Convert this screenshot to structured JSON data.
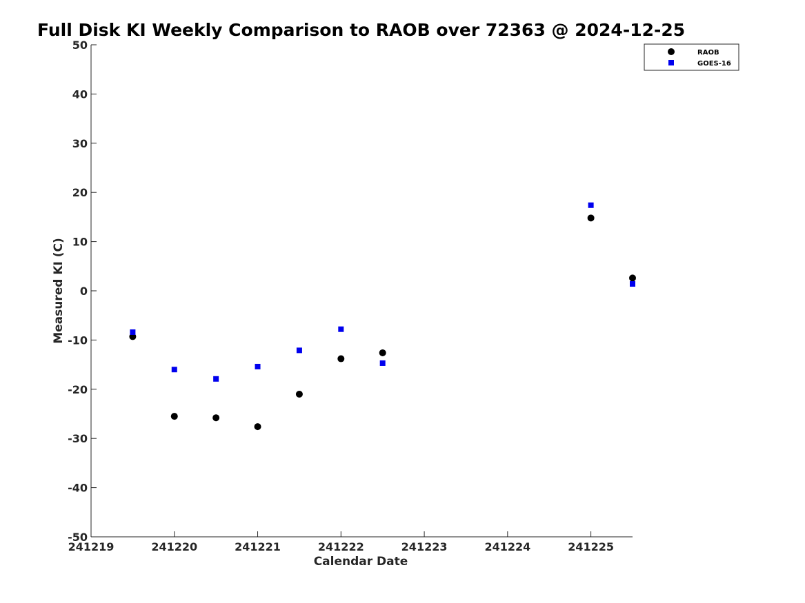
{
  "chart_data": {
    "type": "scatter",
    "title": "Full Disk KI Weekly Comparison to RAOB over 72363 @ 2024-12-25",
    "xlabel": "Calendar Date",
    "ylabel": "Measured KI (C)",
    "xlim": [
      0,
      6.5
    ],
    "ylim": [
      -50,
      50
    ],
    "x_ticks": [
      {
        "value": 0,
        "label": "241219"
      },
      {
        "value": 1,
        "label": "241220"
      },
      {
        "value": 2,
        "label": "241221"
      },
      {
        "value": 3,
        "label": "241222"
      },
      {
        "value": 4,
        "label": "241223"
      },
      {
        "value": 5,
        "label": "241224"
      },
      {
        "value": 6,
        "label": "241225"
      }
    ],
    "y_ticks": [
      50,
      40,
      30,
      20,
      10,
      0,
      -10,
      -20,
      -30,
      -40,
      -50
    ],
    "grid": false,
    "legend": "top-right",
    "series": [
      {
        "name": "RAOB",
        "marker": "circle",
        "color": "#000000",
        "points": [
          {
            "x": 0.5,
            "y": -9.3
          },
          {
            "x": 1.0,
            "y": -25.5
          },
          {
            "x": 1.5,
            "y": -25.8
          },
          {
            "x": 2.0,
            "y": -27.6
          },
          {
            "x": 2.5,
            "y": -21.0
          },
          {
            "x": 3.0,
            "y": -13.8
          },
          {
            "x": 3.5,
            "y": -12.6
          },
          {
            "x": 6.0,
            "y": 14.8
          },
          {
            "x": 6.5,
            "y": 2.6
          }
        ]
      },
      {
        "name": "GOES-16",
        "marker": "square",
        "color": "#0000ee",
        "points": [
          {
            "x": 0.5,
            "y": -8.4
          },
          {
            "x": 1.0,
            "y": -16.0
          },
          {
            "x": 1.5,
            "y": -17.9
          },
          {
            "x": 2.0,
            "y": -15.4
          },
          {
            "x": 2.5,
            "y": -12.1
          },
          {
            "x": 3.0,
            "y": -7.8
          },
          {
            "x": 3.5,
            "y": -14.7
          },
          {
            "x": 6.0,
            "y": 17.4
          },
          {
            "x": 6.5,
            "y": 1.4
          }
        ]
      }
    ]
  }
}
